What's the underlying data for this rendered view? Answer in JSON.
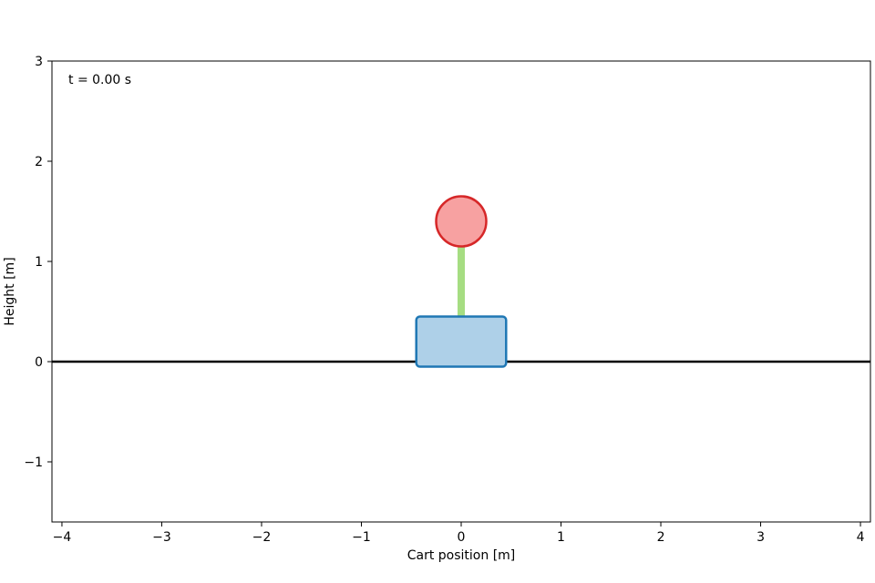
{
  "chart_data": {
    "type": "scatter",
    "title": "",
    "xlabel": "Cart position [m]",
    "ylabel": "Height [m]",
    "xlim": [
      -4.1,
      4.1
    ],
    "ylim": [
      -1.6,
      3
    ],
    "x_ticks": [
      {
        "value": -4,
        "label": "−4"
      },
      {
        "value": -3,
        "label": "−3"
      },
      {
        "value": -2,
        "label": "−2"
      },
      {
        "value": -1,
        "label": "−1"
      },
      {
        "value": 0,
        "label": "0"
      },
      {
        "value": 1,
        "label": "1"
      },
      {
        "value": 2,
        "label": "2"
      },
      {
        "value": 3,
        "label": "3"
      },
      {
        "value": 4,
        "label": "4"
      }
    ],
    "y_ticks": [
      {
        "value": -1,
        "label": "−1"
      },
      {
        "value": 0,
        "label": "0"
      },
      {
        "value": 1,
        "label": "1"
      },
      {
        "value": 2,
        "label": "2"
      },
      {
        "value": 3,
        "label": "3"
      }
    ],
    "grid": false,
    "time_label": "t = 0.00 s",
    "ground": {
      "y": 0,
      "color": "#000000"
    },
    "cart": {
      "x": 0,
      "width": 0.9,
      "y_bottom": -0.05,
      "height": 0.5,
      "fill": "#aed0e8",
      "stroke": "#1f77b4"
    },
    "pole": {
      "x0": 0,
      "y0": 0.45,
      "x1": 0,
      "y1": 1.4,
      "color": "#a6dd82"
    },
    "bob": {
      "x": 0,
      "y": 1.4,
      "radius": 0.25,
      "fill": "#f7a1a1",
      "stroke": "#d62728"
    }
  }
}
